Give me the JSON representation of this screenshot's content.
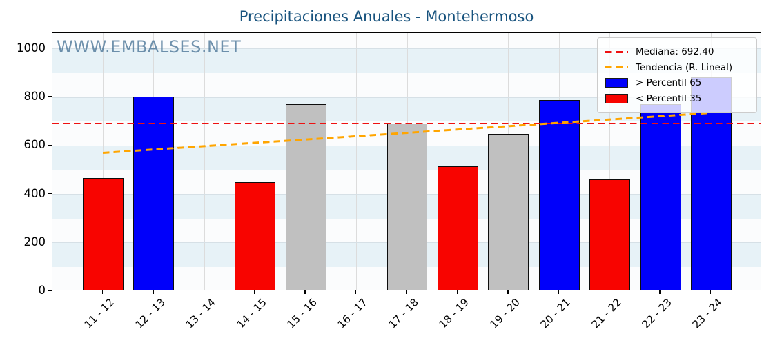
{
  "title": "Precipitaciones Anuales - Montehermoso",
  "watermark": "WWW.EMBALSES.NET",
  "legend": {
    "median_label": "Mediana: 692.40",
    "trend_label": "Tendencia (R. Lineal)",
    "high_label": "> Percentil 65",
    "low_label": "< Percentil 35"
  },
  "colors": {
    "title": "#18537e",
    "watermark": "rgba(73,115,150,0.78)",
    "bar_high": "#0000fa",
    "bar_low": "#f80400",
    "bar_mid": "#c0c0c0",
    "bar_edge": "#0d0d0d",
    "median_line": "#ee1111",
    "trend_line": "#ffa500",
    "stripe_blue": "#e7f2f7",
    "stripe_white": "#fbfcfd",
    "vgrid": "#dcdcdc",
    "hgrid": "#d6e0e6",
    "axis": "#000000"
  },
  "chart_data": {
    "type": "bar",
    "title": "Precipitaciones Anuales - Montehermoso",
    "xlabel": "",
    "ylabel": "",
    "categories": [
      "11 - 12",
      "12 - 13",
      "13 - 14",
      "14 - 15",
      "15 - 16",
      "16 - 17",
      "17 - 18",
      "18 - 19",
      "19 - 20",
      "20 - 21",
      "21 - 22",
      "22 - 23",
      "23 - 24"
    ],
    "values": [
      468,
      802,
      null,
      450,
      771,
      null,
      692.4,
      514,
      648,
      790,
      460,
      773,
      882
    ],
    "bar_classes": [
      "low",
      "high",
      "none",
      "low",
      "mid",
      "none",
      "mid",
      "low",
      "mid",
      "high",
      "low",
      "high",
      "high"
    ],
    "median": 692.4,
    "trend": {
      "start_value": 572,
      "end_value": 737
    },
    "ylim": [
      0,
      1065
    ],
    "yticks": [
      0,
      200,
      400,
      600,
      800,
      1000
    ],
    "grid": true,
    "legend_position": "upper right",
    "stripe_band_size": 100
  }
}
